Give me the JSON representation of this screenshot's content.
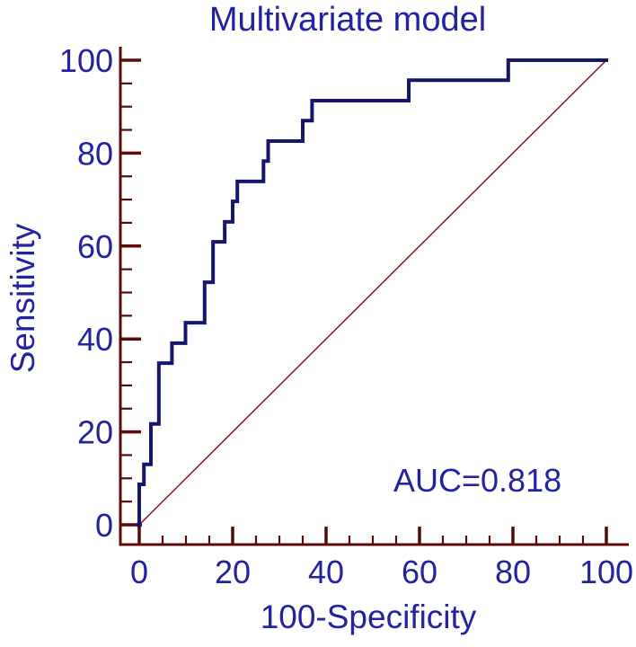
{
  "figure_title": "Multivariate model",
  "colors": {
    "background": "#ffffff",
    "text": "#2323a0",
    "axis": "#5c0909",
    "curve": "#16166e",
    "diagonal": "#8b1414"
  },
  "chart_data": {
    "type": "line",
    "subtype": "roc-curve",
    "title": "Multivariate model",
    "xlabel": "100-Specificity",
    "ylabel": "Sensitivity",
    "xlim": [
      0,
      100
    ],
    "ylim": [
      0,
      100
    ],
    "x_major_ticks": [
      0,
      20,
      40,
      60,
      80,
      100
    ],
    "y_major_ticks": [
      0,
      20,
      40,
      60,
      80,
      100
    ],
    "minor_tick_step": 5,
    "major_tick_step": 20,
    "grid": false,
    "legend": "none",
    "annotation": {
      "text": "AUC=0.818",
      "auc_value": 0.818
    },
    "series": [
      {
        "name": "roc-curve",
        "color": "#16166e",
        "points": [
          [
            0,
            0
          ],
          [
            0,
            8.7
          ],
          [
            1,
            8.7
          ],
          [
            1,
            13
          ],
          [
            2.5,
            13
          ],
          [
            2.5,
            21.7
          ],
          [
            4.2,
            21.7
          ],
          [
            4.2,
            34.8
          ],
          [
            7,
            34.8
          ],
          [
            7,
            39.1
          ],
          [
            9.9,
            39.1
          ],
          [
            9.9,
            43.5
          ],
          [
            14,
            43.5
          ],
          [
            14,
            52.2
          ],
          [
            15.8,
            52.2
          ],
          [
            15.8,
            60.9
          ],
          [
            18.3,
            60.9
          ],
          [
            18.3,
            65.2
          ],
          [
            20,
            65.2
          ],
          [
            20,
            69.6
          ],
          [
            21,
            69.6
          ],
          [
            21,
            73.9
          ],
          [
            26.6,
            73.9
          ],
          [
            26.6,
            78.3
          ],
          [
            27.6,
            78.3
          ],
          [
            27.6,
            82.6
          ],
          [
            35,
            82.6
          ],
          [
            35,
            87
          ],
          [
            37,
            87
          ],
          [
            37,
            91.3
          ],
          [
            57.7,
            91.3
          ],
          [
            57.7,
            95.7
          ],
          [
            79,
            95.7
          ],
          [
            79,
            100
          ],
          [
            100,
            100
          ]
        ]
      },
      {
        "name": "reference-diagonal",
        "color": "#8b1414",
        "points": [
          [
            0,
            0
          ],
          [
            100,
            100
          ]
        ]
      }
    ]
  }
}
